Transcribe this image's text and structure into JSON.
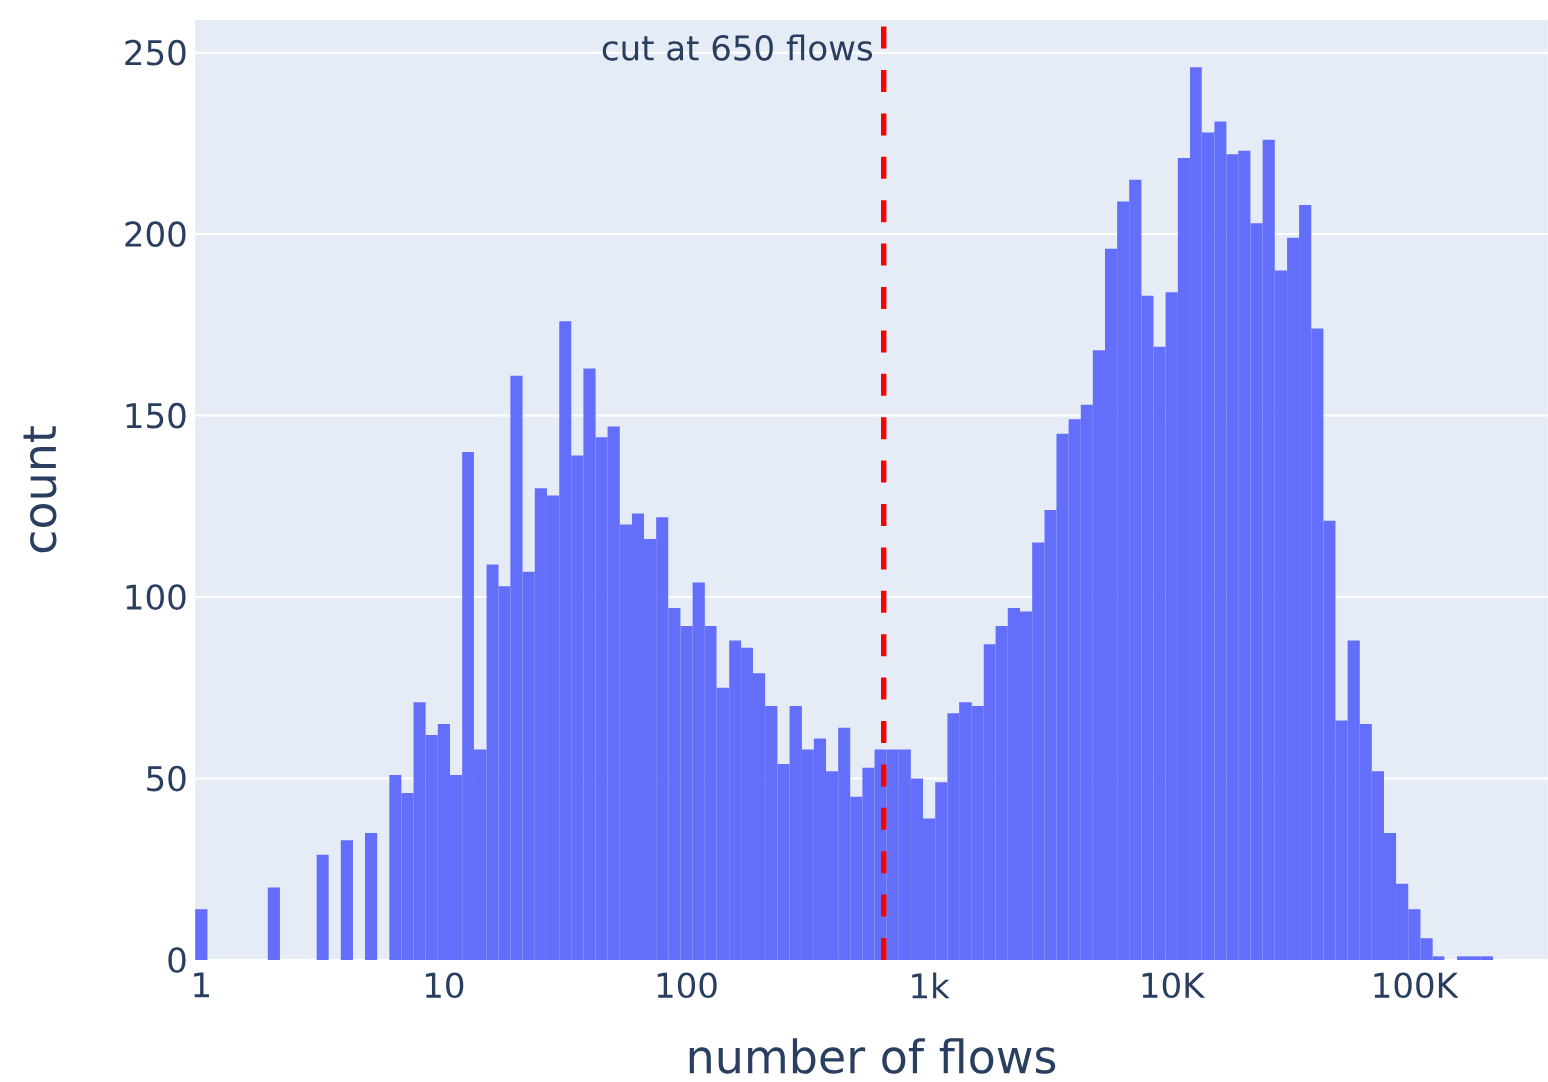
{
  "chart_data": {
    "type": "histogram",
    "xlabel": "number of flows",
    "ylabel": "count",
    "log": "x",
    "bins": [
      0.944,
      1.06,
      1.19,
      1.33,
      1.5,
      1.68,
      1.88,
      2.11,
      2.37,
      2.66,
      2.99,
      3.35,
      3.76,
      4.22,
      4.73,
      5.31,
      5.96,
      6.68,
      7.5,
      8.41,
      9.44,
      10.6,
      11.9,
      13.3,
      15,
      16.8,
      18.8,
      21.1,
      23.7,
      26.6,
      29.9,
      33.5,
      37.6,
      42.2,
      47.3,
      53.1,
      59.6,
      66.8,
      75,
      84.1,
      94.4,
      106,
      119,
      133,
      150,
      168,
      188,
      211,
      237,
      266,
      299,
      335,
      376,
      422,
      473,
      531,
      596,
      668,
      750,
      841,
      944,
      1060,
      1190,
      1330,
      1500,
      1680,
      1880,
      2110,
      2370,
      2660,
      2990,
      3350,
      3760,
      4220,
      4730,
      5310,
      5960,
      6680,
      7500,
      8410,
      9440,
      10600,
      11900,
      13300,
      15000,
      16800,
      18800,
      21100,
      23700,
      26600,
      29900,
      33500,
      37600,
      42200,
      47300,
      53100,
      59600,
      66800,
      75000,
      84100,
      94400,
      106000,
      119000,
      133000,
      150000,
      168000,
      188000,
      211000
    ],
    "values": [
      14,
      0,
      0,
      0,
      0,
      0,
      20,
      0,
      0,
      0,
      29,
      0,
      33,
      0,
      35,
      0,
      51,
      46,
      71,
      62,
      65,
      51,
      140,
      58,
      109,
      103,
      161,
      107,
      130,
      128,
      176,
      139,
      163,
      144,
      147,
      120,
      123,
      116,
      122,
      97,
      92,
      104,
      92,
      75,
      88,
      86,
      79,
      70,
      54,
      70,
      58,
      61,
      52,
      64,
      45,
      53,
      58,
      58,
      58,
      50,
      39,
      49,
      68,
      71,
      70,
      87,
      92,
      97,
      96,
      115,
      124,
      145,
      149,
      153,
      168,
      196,
      209,
      215,
      183,
      169,
      184,
      221,
      246,
      228,
      231,
      222,
      223,
      203,
      226,
      190,
      199,
      208,
      174,
      121,
      66,
      88,
      65,
      52,
      35,
      21,
      14,
      6,
      1,
      0,
      1,
      1,
      1
    ],
    "color": "#636efa",
    "xlim": [
      0.944,
      355000
    ],
    "ylim": [
      0,
      259
    ],
    "xticks": [
      1,
      10,
      100,
      {
        "value": 1000,
        "label": "1k"
      },
      {
        "value": 10000,
        "label": "10K"
      },
      {
        "value": 100000,
        "label": "100K"
      }
    ],
    "yticks": [
      0,
      50,
      100,
      150,
      200,
      250
    ],
    "grid": "y",
    "ref_lines": [
      {
        "axis": "x",
        "value": 650,
        "label": "cut at 650 flows",
        "color": "#ff0000",
        "line_style": "dashed"
      }
    ]
  }
}
